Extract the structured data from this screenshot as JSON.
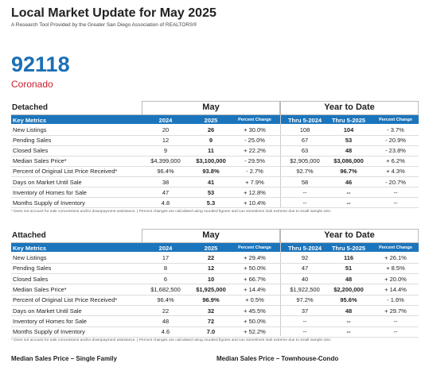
{
  "header": {
    "title": "Local Market Update for May 2025",
    "subtitle": "A Research Tool Provided by the Greater San Diego Association of REALTORS®"
  },
  "area": {
    "zip": "92118",
    "name": "Coronado"
  },
  "tables": [
    {
      "section": "Detached",
      "period_month": "May",
      "period_ytd": "Year to Date",
      "columns": [
        "Key Metrics",
        "2024",
        "2025",
        "Percent Change",
        "Thru 5-2024",
        "Thru 5-2025",
        "Percent Change"
      ],
      "rows": [
        [
          "New Listings",
          "20",
          "26",
          "+ 30.0%",
          "108",
          "104",
          "- 3.7%"
        ],
        [
          "Pending Sales",
          "12",
          "9",
          "- 25.0%",
          "67",
          "53",
          "- 20.9%"
        ],
        [
          "Closed Sales",
          "9",
          "11",
          "+ 22.2%",
          "63",
          "48",
          "- 23.8%"
        ],
        [
          "Median Sales Price*",
          "$4,399,000",
          "$3,100,000",
          "- 29.5%",
          "$2,905,000",
          "$3,086,000",
          "+ 6.2%"
        ],
        [
          "Percent of Original List Price Received*",
          "96.4%",
          "93.8%",
          "- 2.7%",
          "92.7%",
          "96.7%",
          "+ 4.3%"
        ],
        [
          "Days on Market Until Sale",
          "38",
          "41",
          "+ 7.9%",
          "58",
          "46",
          "- 20.7%"
        ],
        [
          "Inventory of Homes for Sale",
          "47",
          "53",
          "+ 12.8%",
          "--",
          "--",
          "--"
        ],
        [
          "Months Supply of Inventory",
          "4.8",
          "5.3",
          "+ 10.4%",
          "--",
          "--",
          "--"
        ]
      ],
      "footnote": "* Does not account for sale concessions and/or downpayment assistance.  |  Percent changes are calculated using rounded figures and can sometimes look extreme due to small sample size."
    },
    {
      "section": "Attached",
      "period_month": "May",
      "period_ytd": "Year to Date",
      "columns": [
        "Key Metrics",
        "2024",
        "2025",
        "Percent Change",
        "Thru 5-2024",
        "Thru 5-2025",
        "Percent Change"
      ],
      "rows": [
        [
          "New Listings",
          "17",
          "22",
          "+ 29.4%",
          "92",
          "116",
          "+ 26.1%"
        ],
        [
          "Pending Sales",
          "8",
          "12",
          "+ 50.0%",
          "47",
          "51",
          "+ 8.5%"
        ],
        [
          "Closed Sales",
          "6",
          "10",
          "+ 66.7%",
          "40",
          "48",
          "+ 20.0%"
        ],
        [
          "Median Sales Price*",
          "$1,682,500",
          "$1,925,000",
          "+ 14.4%",
          "$1,922,500",
          "$2,200,000",
          "+ 14.4%"
        ],
        [
          "Percent of Original List Price Received*",
          "96.4%",
          "96.9%",
          "+ 0.5%",
          "97.2%",
          "95.6%",
          "- 1.6%"
        ],
        [
          "Days on Market Until Sale",
          "22",
          "32",
          "+ 45.5%",
          "37",
          "48",
          "+ 29.7%"
        ],
        [
          "Inventory of Homes for Sale",
          "48",
          "72",
          "+ 50.0%",
          "--",
          "--",
          "--"
        ],
        [
          "Months Supply of Inventory",
          "4.6",
          "7.0",
          "+ 52.2%",
          "--",
          "--",
          "--"
        ]
      ],
      "footnote": "* Does not account for sale concessions and/or downpayment assistance.  |  Percent changes are calculated using rounded figures and can sometimes look extreme due to small sample size."
    }
  ],
  "footer": [
    "Median Sales Price – Single Family",
    "Median Sales Price – Townhouse-Condo"
  ]
}
